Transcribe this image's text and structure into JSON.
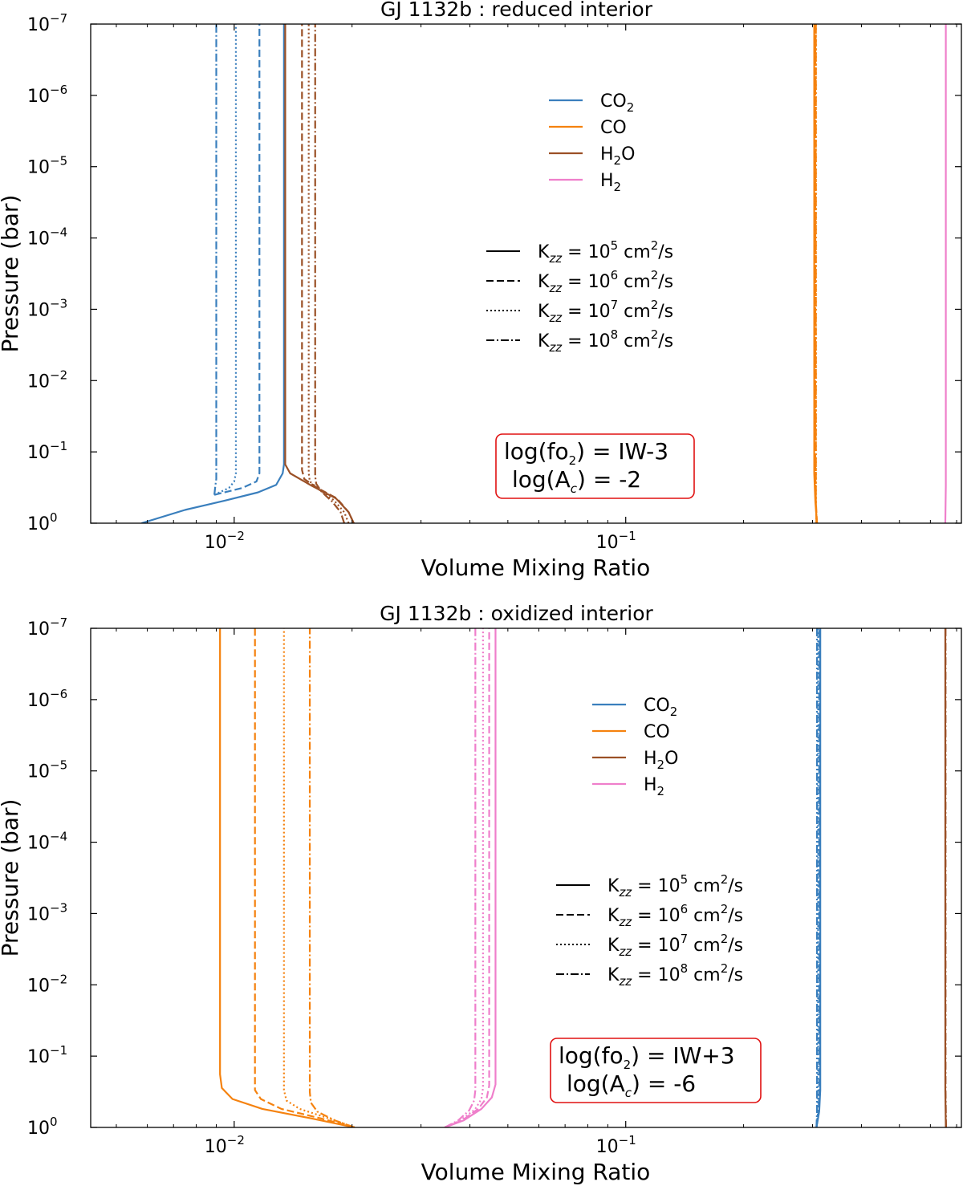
{
  "colors": {
    "CO2": "#3a7fbd",
    "CO": "#f5820f",
    "H2O": "#9b5026",
    "H2": "#ef7fcb",
    "annotation_border": "#e01010"
  },
  "chart_data": [
    {
      "type": "line",
      "title": "GJ 1132b : reduced interior",
      "xlabel": "Volume Mixing Ratio",
      "ylabel": "Pressure (bar)",
      "xscale": "log",
      "yscale": "log",
      "xlim": [
        0.0043,
        0.72
      ],
      "ylim": [
        1,
        1e-07
      ],
      "y_inverted": true,
      "grid": false,
      "x_ticks": [
        {
          "value": 0.01,
          "base": "10",
          "exp": "−2"
        },
        {
          "value": 0.1,
          "base": "10",
          "exp": "−1"
        }
      ],
      "y_ticks": [
        {
          "value": 1e-07,
          "base": "10",
          "exp": "−7"
        },
        {
          "value": 1e-06,
          "base": "10",
          "exp": "−6"
        },
        {
          "value": 1e-05,
          "base": "10",
          "exp": "−5"
        },
        {
          "value": 0.0001,
          "base": "10",
          "exp": "−4"
        },
        {
          "value": 0.001,
          "base": "10",
          "exp": "−3"
        },
        {
          "value": 0.01,
          "base": "10",
          "exp": "−2"
        },
        {
          "value": 0.1,
          "base": "10",
          "exp": "−1"
        },
        {
          "value": 1,
          "base": "10",
          "exp": "0"
        }
      ],
      "legend_species": {
        "placement": "upper-center",
        "entries": [
          {
            "species": "CO2",
            "main": "CO",
            "sub": "2",
            "rest": ""
          },
          {
            "species": "CO",
            "main": "CO",
            "sub": "",
            "rest": ""
          },
          {
            "species": "H2O",
            "main": "H",
            "sub": "2",
            "rest": "O"
          },
          {
            "species": "H2",
            "main": "H",
            "sub": "2",
            "rest": ""
          }
        ]
      },
      "legend_kzz": {
        "placement": "center",
        "entries": [
          {
            "style": "solid",
            "exp": "5"
          },
          {
            "style": "dashed",
            "exp": "6"
          },
          {
            "style": "dotted",
            "exp": "7"
          },
          {
            "style": "dashdot",
            "exp": "8"
          }
        ]
      },
      "annotation": {
        "line1_pre": "log(fo",
        "line1_sub": "2",
        "line1_post": ") = IW-3",
        "line2_pre": "log(A",
        "line2_sub": "c",
        "line2_post": ") = -2"
      },
      "series": [
        {
          "species": "CO2",
          "style": "solid",
          "points": [
            [
              0.0058,
              1
            ],
            [
              0.0075,
              0.65
            ],
            [
              0.0095,
              0.48
            ],
            [
              0.0115,
              0.37
            ],
            [
              0.0128,
              0.29
            ],
            [
              0.0133,
              0.2
            ],
            [
              0.0134,
              0.15
            ],
            [
              0.0134,
              1e-07
            ]
          ]
        },
        {
          "species": "CO2",
          "style": "dashed",
          "points": [
            [
              0.0089,
              0.4
            ],
            [
              0.0105,
              0.32
            ],
            [
              0.0114,
              0.26
            ],
            [
              0.0116,
              0.2
            ],
            [
              0.0116,
              1e-07
            ]
          ]
        },
        {
          "species": "CO2",
          "style": "dotted",
          "points": [
            [
              0.0089,
              0.4
            ],
            [
              0.0097,
              0.32
            ],
            [
              0.01,
              0.26
            ],
            [
              0.0101,
              0.2
            ],
            [
              0.0101,
              1e-07
            ]
          ]
        },
        {
          "species": "CO2",
          "style": "dashdot",
          "points": [
            [
              0.0089,
              0.4
            ],
            [
              0.00895,
              0.3
            ],
            [
              0.009,
              0.24
            ],
            [
              0.009,
              1e-07
            ]
          ]
        },
        {
          "species": "H2O",
          "style": "solid",
          "points": [
            [
              0.0202,
              1
            ],
            [
              0.0196,
              0.7
            ],
            [
              0.0182,
              0.45
            ],
            [
              0.0158,
              0.3
            ],
            [
              0.0139,
              0.2
            ],
            [
              0.0135,
              0.15
            ],
            [
              0.0135,
              1e-07
            ]
          ]
        },
        {
          "species": "H2O",
          "style": "dashed",
          "points": [
            [
              0.0202,
              1
            ],
            [
              0.0196,
              0.7
            ],
            [
              0.0183,
              0.45
            ],
            [
              0.0163,
              0.32
            ],
            [
              0.0151,
              0.24
            ],
            [
              0.0149,
              0.18
            ],
            [
              0.0149,
              1e-07
            ]
          ]
        },
        {
          "species": "H2O",
          "style": "dotted",
          "points": [
            [
              0.0196,
              1
            ],
            [
              0.0191,
              0.7
            ],
            [
              0.018,
              0.48
            ],
            [
              0.0165,
              0.34
            ],
            [
              0.0156,
              0.26
            ],
            [
              0.0155,
              0.2
            ],
            [
              0.0155,
              1e-07
            ]
          ]
        },
        {
          "species": "H2O",
          "style": "dashdot",
          "points": [
            [
              0.0191,
              1
            ],
            [
              0.0187,
              0.7
            ],
            [
              0.0178,
              0.5
            ],
            [
              0.0167,
              0.36
            ],
            [
              0.0162,
              0.28
            ],
            [
              0.0161,
              0.22
            ],
            [
              0.0161,
              1e-07
            ]
          ]
        },
        {
          "species": "CO",
          "style": "solid",
          "points": [
            [
              0.308,
              1
            ],
            [
              0.305,
              0.5
            ],
            [
              0.303,
              0.2
            ],
            [
              0.303,
              1e-07
            ]
          ]
        },
        {
          "species": "CO",
          "style": "dashed",
          "points": [
            [
              0.308,
              1
            ],
            [
              0.306,
              0.5
            ],
            [
              0.305,
              0.2
            ],
            [
              0.305,
              1e-07
            ]
          ]
        },
        {
          "species": "CO",
          "style": "dotted",
          "points": [
            [
              0.307,
              1
            ],
            [
              0.306,
              0.5
            ],
            [
              0.306,
              1e-07
            ]
          ]
        },
        {
          "species": "CO",
          "style": "dashdot",
          "points": [
            [
              0.307,
              1
            ],
            [
              0.306,
              0.5
            ],
            [
              0.306,
              1e-07
            ]
          ]
        },
        {
          "species": "H2",
          "style": "solid",
          "points": [
            [
              0.655,
              1
            ],
            [
              0.657,
              0.3
            ],
            [
              0.657,
              1e-07
            ]
          ]
        }
      ]
    },
    {
      "type": "line",
      "title": "GJ 1132b : oxidized interior",
      "xlabel": "Volume Mixing Ratio",
      "ylabel": "Pressure (bar)",
      "xscale": "log",
      "yscale": "log",
      "xlim": [
        0.0043,
        0.72
      ],
      "ylim": [
        1,
        1e-07
      ],
      "y_inverted": true,
      "grid": false,
      "x_ticks": [
        {
          "value": 0.01,
          "base": "10",
          "exp": "−2"
        },
        {
          "value": 0.1,
          "base": "10",
          "exp": "−1"
        }
      ],
      "y_ticks": [
        {
          "value": 1e-07,
          "base": "10",
          "exp": "−7"
        },
        {
          "value": 1e-06,
          "base": "10",
          "exp": "−6"
        },
        {
          "value": 1e-05,
          "base": "10",
          "exp": "−5"
        },
        {
          "value": 0.0001,
          "base": "10",
          "exp": "−4"
        },
        {
          "value": 0.001,
          "base": "10",
          "exp": "−3"
        },
        {
          "value": 0.01,
          "base": "10",
          "exp": "−2"
        },
        {
          "value": 0.1,
          "base": "10",
          "exp": "−1"
        },
        {
          "value": 1,
          "base": "10",
          "exp": "0"
        }
      ],
      "legend_species": {
        "placement": "upper-center",
        "entries": [
          {
            "species": "CO2",
            "main": "CO",
            "sub": "2",
            "rest": ""
          },
          {
            "species": "CO",
            "main": "CO",
            "sub": "",
            "rest": ""
          },
          {
            "species": "H2O",
            "main": "H",
            "sub": "2",
            "rest": "O"
          },
          {
            "species": "H2",
            "main": "H",
            "sub": "2",
            "rest": ""
          }
        ]
      },
      "legend_kzz": {
        "placement": "center-right",
        "entries": [
          {
            "style": "solid",
            "exp": "5"
          },
          {
            "style": "dashed",
            "exp": "6"
          },
          {
            "style": "dotted",
            "exp": "7"
          },
          {
            "style": "dashdot",
            "exp": "8"
          }
        ]
      },
      "annotation": {
        "line1_pre": "log(fo",
        "line1_sub": "2",
        "line1_post": ") = IW+3",
        "line2_pre": "log(A",
        "line2_sub": "c",
        "line2_post": ") = -6"
      },
      "series": [
        {
          "species": "CO",
          "style": "solid",
          "points": [
            [
              0.0203,
              1
            ],
            [
              0.0158,
              0.75
            ],
            [
              0.0118,
              0.55
            ],
            [
              0.0099,
              0.4
            ],
            [
              0.0093,
              0.28
            ],
            [
              0.0092,
              0.18
            ],
            [
              0.0092,
              1e-07
            ]
          ]
        },
        {
          "species": "CO",
          "style": "dashed",
          "points": [
            [
              0.0203,
              1
            ],
            [
              0.0167,
              0.75
            ],
            [
              0.0132,
              0.55
            ],
            [
              0.0117,
              0.4
            ],
            [
              0.0113,
              0.3
            ],
            [
              0.0113,
              0.2
            ],
            [
              0.0113,
              1e-07
            ]
          ]
        },
        {
          "species": "CO",
          "style": "dotted",
          "points": [
            [
              0.0203,
              1
            ],
            [
              0.0175,
              0.75
            ],
            [
              0.0147,
              0.55
            ],
            [
              0.0136,
              0.42
            ],
            [
              0.0134,
              0.3
            ],
            [
              0.0134,
              1e-07
            ]
          ]
        },
        {
          "species": "CO",
          "style": "dashdot",
          "points": [
            [
              0.0203,
              1
            ],
            [
              0.0181,
              0.8
            ],
            [
              0.0163,
              0.6
            ],
            [
              0.0157,
              0.45
            ],
            [
              0.0156,
              0.32
            ],
            [
              0.0156,
              1e-07
            ]
          ]
        },
        {
          "species": "H2",
          "style": "solid",
          "points": [
            [
              0.0345,
              1
            ],
            [
              0.0385,
              0.8
            ],
            [
              0.0428,
              0.55
            ],
            [
              0.0455,
              0.38
            ],
            [
              0.0465,
              0.25
            ],
            [
              0.0465,
              1e-07
            ]
          ]
        },
        {
          "species": "H2",
          "style": "dashed",
          "points": [
            [
              0.0345,
              1
            ],
            [
              0.0382,
              0.8
            ],
            [
              0.042,
              0.55
            ],
            [
              0.0442,
              0.38
            ],
            [
              0.0448,
              0.26
            ],
            [
              0.0448,
              1e-07
            ]
          ]
        },
        {
          "species": "H2",
          "style": "dotted",
          "points": [
            [
              0.0345,
              1
            ],
            [
              0.0378,
              0.8
            ],
            [
              0.0412,
              0.56
            ],
            [
              0.0428,
              0.4
            ],
            [
              0.0432,
              0.28
            ],
            [
              0.0432,
              1e-07
            ]
          ]
        },
        {
          "species": "H2",
          "style": "dashdot",
          "points": [
            [
              0.0345,
              1
            ],
            [
              0.0373,
              0.8
            ],
            [
              0.0398,
              0.58
            ],
            [
              0.041,
              0.42
            ],
            [
              0.0413,
              0.3
            ],
            [
              0.0413,
              1e-07
            ]
          ]
        },
        {
          "species": "CO2",
          "style": "solid",
          "points": [
            [
              0.307,
              1
            ],
            [
              0.312,
              0.6
            ],
            [
              0.314,
              0.3
            ],
            [
              0.314,
              1e-07
            ]
          ]
        },
        {
          "species": "CO2",
          "style": "dashed",
          "points": [
            [
              0.307,
              1
            ],
            [
              0.311,
              0.6
            ],
            [
              0.312,
              0.3
            ],
            [
              0.312,
              1e-07
            ]
          ]
        },
        {
          "species": "CO2",
          "style": "dotted",
          "points": [
            [
              0.307,
              1
            ],
            [
              0.31,
              0.6
            ],
            [
              0.31,
              1e-07
            ]
          ]
        },
        {
          "species": "CO2",
          "style": "dashdot",
          "points": [
            [
              0.307,
              1
            ],
            [
              0.308,
              0.6
            ],
            [
              0.308,
              1e-07
            ]
          ]
        },
        {
          "species": "H2O",
          "style": "solid",
          "points": [
            [
              0.657,
              1
            ],
            [
              0.655,
              0.3
            ],
            [
              0.655,
              1e-07
            ]
          ]
        },
        {
          "species": "H2O",
          "style": "dashdot",
          "points": [
            [
              0.658,
              1
            ],
            [
              0.656,
              0.3
            ],
            [
              0.656,
              1e-07
            ]
          ]
        }
      ]
    }
  ]
}
